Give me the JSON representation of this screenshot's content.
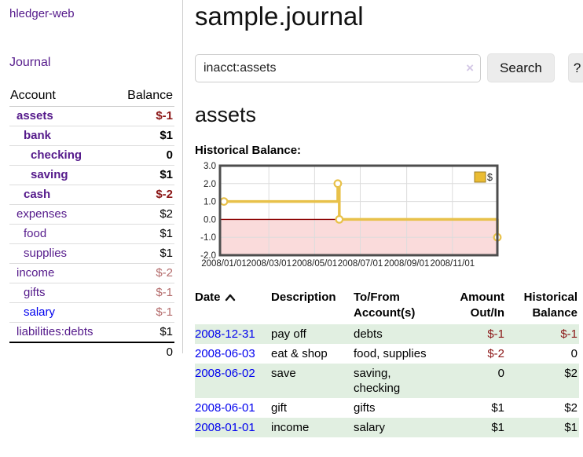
{
  "sidebar": {
    "brand": "hledger-web",
    "journal_link": "Journal",
    "accounts_header": {
      "account": "Account",
      "balance": "Balance"
    },
    "accounts": [
      {
        "name": "assets",
        "balance": "$-1",
        "level": 1,
        "bold": true,
        "name_color": "purple",
        "balance_class": "neg"
      },
      {
        "name": "bank",
        "balance": "$1",
        "level": 2,
        "bold": true,
        "name_color": "purple",
        "balance_class": "pos"
      },
      {
        "name": "checking",
        "balance": "0",
        "level": 3,
        "bold": true,
        "name_color": "purple",
        "balance_class": "pos"
      },
      {
        "name": "saving",
        "balance": "$1",
        "level": 3,
        "bold": true,
        "name_color": "purple",
        "balance_class": "pos"
      },
      {
        "name": "cash",
        "balance": "$-2",
        "level": 2,
        "bold": true,
        "name_color": "purple",
        "balance_class": "neg"
      },
      {
        "name": "expenses",
        "balance": "$2",
        "level": 1,
        "bold": false,
        "name_color": "purple",
        "balance_class": "pos"
      },
      {
        "name": "food",
        "balance": "$1",
        "level": 2,
        "bold": false,
        "name_color": "purple",
        "balance_class": "pos"
      },
      {
        "name": "supplies",
        "balance": "$1",
        "level": 2,
        "bold": false,
        "name_color": "purple",
        "balance_class": "pos"
      },
      {
        "name": "income",
        "balance": "$-2",
        "level": 1,
        "bold": false,
        "name_color": "purple",
        "balance_class": "neg-soft"
      },
      {
        "name": "gifts",
        "balance": "$-1",
        "level": 2,
        "bold": false,
        "name_color": "purple",
        "balance_class": "neg-soft"
      },
      {
        "name": "salary",
        "balance": "$-1",
        "level": 2,
        "bold": false,
        "name_color": "blue",
        "balance_class": "neg-soft"
      },
      {
        "name": "liabilities:debts",
        "balance": "$1",
        "level": 1,
        "bold": false,
        "name_color": "purple",
        "balance_class": "pos"
      }
    ],
    "total": "0"
  },
  "header": {
    "title": "sample.journal"
  },
  "search": {
    "value": "inacct:assets",
    "clear_icon": "×",
    "button_label": "Search",
    "help_label": "?"
  },
  "account_page": {
    "title": "assets",
    "chart_label": "Historical Balance:"
  },
  "chart_data": {
    "type": "line",
    "title": "Historical Balance",
    "legend": "$",
    "legend_position": "top-right",
    "grid": true,
    "xlim_days": [
      0,
      365
    ],
    "ylim": [
      -2.0,
      3.0
    ],
    "y_ticks": [
      3.0,
      2.0,
      1.0,
      0.0,
      -1.0,
      -2.0
    ],
    "x_ticks": [
      {
        "day": 0,
        "label": "2008/01/01"
      },
      {
        "day": 60,
        "label": "2008/03/01"
      },
      {
        "day": 121,
        "label": "2008/05/01"
      },
      {
        "day": 182,
        "label": "2008/07/01"
      },
      {
        "day": 244,
        "label": "2008/09/01"
      },
      {
        "day": 305,
        "label": "2008/11/01"
      }
    ],
    "series": [
      {
        "name": "$",
        "color": "#e8c14a",
        "marker_fill": "#ffffff",
        "step_points": [
          [
            0,
            1
          ],
          [
            152,
            1
          ],
          [
            152,
            2
          ],
          [
            154,
            2
          ],
          [
            154,
            0
          ],
          [
            365,
            0
          ],
          [
            365,
            -1
          ]
        ],
        "markers": [
          [
            0,
            1
          ],
          [
            152,
            2
          ],
          [
            154,
            0
          ],
          [
            365,
            -1
          ]
        ]
      }
    ],
    "zero_line_color": "#8b0000",
    "negative_region_color": "#fadbdb",
    "gridline_color": "#dcdcdc",
    "border_color": "#4d4d4d",
    "legend_square_fill": "#eabc33",
    "legend_square_stroke": "#9c7c20"
  },
  "table": {
    "headers": [
      "Date",
      "Description",
      "To/From Account(s)",
      "Amount Out/In",
      "Historical Balance"
    ],
    "sort_column": "Date",
    "sort_direction": "ascending",
    "rows": [
      {
        "date": "2008-12-31",
        "description": "pay off",
        "accounts": "debts",
        "amount": "$-1",
        "amount_class": "neg",
        "balance": "$-1",
        "balance_class": "neg"
      },
      {
        "date": "2008-06-03",
        "description": "eat & shop",
        "accounts": "food, supplies",
        "amount": "$-2",
        "amount_class": "neg",
        "balance": "0",
        "balance_class": "pos"
      },
      {
        "date": "2008-06-02",
        "description": "save",
        "accounts": "saving, checking",
        "amount": "0",
        "amount_class": "pos",
        "balance": "$2",
        "balance_class": "pos"
      },
      {
        "date": "2008-06-01",
        "description": "gift",
        "accounts": "gifts",
        "amount": "$1",
        "amount_class": "pos",
        "balance": "$2",
        "balance_class": "pos"
      },
      {
        "date": "2008-01-01",
        "description": "income",
        "accounts": "salary",
        "amount": "$1",
        "amount_class": "pos",
        "balance": "$1",
        "balance_class": "pos"
      }
    ]
  }
}
